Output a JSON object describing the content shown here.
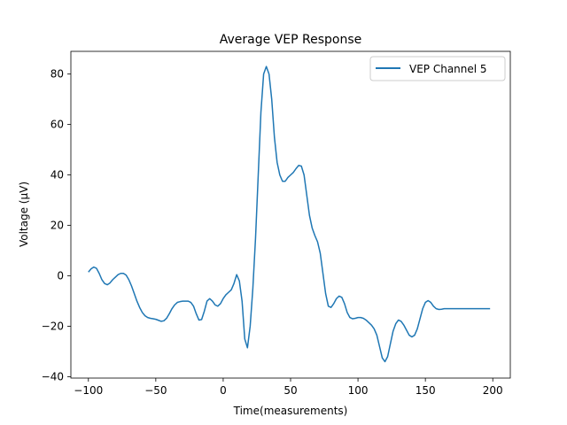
{
  "chart_data": {
    "type": "line",
    "title": "Average VEP Response",
    "xlabel": "Time(measurements)",
    "ylabel": "Voltage (µV)",
    "xlim": [
      -113,
      213
    ],
    "ylim": [
      -40.5,
      89
    ],
    "xticks": [
      -100,
      -50,
      0,
      50,
      100,
      150,
      200
    ],
    "yticks": [
      -40,
      -20,
      0,
      20,
      40,
      60,
      80
    ],
    "grid": false,
    "legend": "top-right",
    "series": [
      {
        "name": "VEP Channel 5",
        "color": "#1f77b4",
        "x": [
          -100,
          -98,
          -96,
          -94,
          -92,
          -90,
          -88,
          -86,
          -84,
          -82,
          -80,
          -78,
          -76,
          -74,
          -72,
          -70,
          -68,
          -66,
          -64,
          -62,
          -60,
          -58,
          -56,
          -54,
          -52,
          -50,
          -48,
          -46,
          -44,
          -42,
          -40,
          -38,
          -36,
          -34,
          -32,
          -30,
          -28,
          -26,
          -24,
          -22,
          -20,
          -18,
          -16,
          -14,
          -12,
          -10,
          -8,
          -6,
          -4,
          -2,
          0,
          2,
          4,
          6,
          8,
          10,
          12,
          14,
          16,
          18,
          20,
          22,
          24,
          26,
          28,
          30,
          32,
          34,
          36,
          38,
          40,
          42,
          44,
          46,
          48,
          50,
          52,
          54,
          56,
          58,
          60,
          62,
          64,
          66,
          68,
          70,
          72,
          74,
          76,
          78,
          80,
          82,
          84,
          86,
          88,
          90,
          92,
          94,
          96,
          98,
          100,
          102,
          104,
          106,
          108,
          110,
          112,
          114,
          116,
          118,
          120,
          122,
          124,
          126,
          128,
          130,
          132,
          134,
          136,
          138,
          140,
          142,
          144,
          146,
          148,
          150,
          152,
          154,
          156,
          158,
          160,
          162,
          164,
          166,
          168,
          170,
          172,
          174,
          176,
          178,
          180,
          182,
          184,
          186,
          188,
          190,
          192,
          194,
          196,
          198
        ],
        "values": [
          1.5,
          2.8,
          3.5,
          3.0,
          1.0,
          -1.5,
          -3.0,
          -3.5,
          -2.8,
          -1.5,
          -0.5,
          0.5,
          1.0,
          1.0,
          0.3,
          -1.5,
          -4.0,
          -7.0,
          -10.0,
          -12.5,
          -14.5,
          -15.8,
          -16.5,
          -16.8,
          -17.0,
          -17.2,
          -17.6,
          -18.0,
          -17.8,
          -16.8,
          -15.0,
          -13.0,
          -11.5,
          -10.5,
          -10.2,
          -10.0,
          -10.0,
          -10.0,
          -10.5,
          -12.0,
          -15.0,
          -17.5,
          -17.3,
          -14.0,
          -10.0,
          -9.0,
          -10.0,
          -11.5,
          -12.0,
          -11.0,
          -9.0,
          -7.5,
          -6.5,
          -5.5,
          -3.0,
          0.5,
          -2.0,
          -10.0,
          -25.0,
          -28.5,
          -20.0,
          -5.0,
          15.0,
          40.0,
          65.0,
          80.0,
          83.0,
          80.0,
          70.0,
          55.0,
          45.0,
          40.0,
          37.5,
          37.5,
          39.0,
          40.0,
          41.0,
          42.5,
          43.8,
          43.5,
          40.0,
          32.0,
          24.0,
          19.0,
          16.0,
          13.5,
          9.0,
          1.0,
          -7.0,
          -12.0,
          -12.5,
          -11.0,
          -9.0,
          -8.0,
          -8.5,
          -11.0,
          -14.5,
          -16.5,
          -17.0,
          -16.8,
          -16.5,
          -16.5,
          -16.8,
          -17.5,
          -18.5,
          -19.5,
          -21.0,
          -23.5,
          -28.0,
          -32.5,
          -34.0,
          -32.0,
          -27.0,
          -22.0,
          -19.0,
          -17.5,
          -18.0,
          -19.5,
          -21.5,
          -23.5,
          -24.2,
          -23.5,
          -21.0,
          -17.0,
          -13.0,
          -10.5,
          -9.8,
          -10.5,
          -12.0,
          -13.0,
          -13.3,
          -13.2,
          -13.0,
          -13.0,
          -13.0,
          -13.0,
          -13.0,
          -13.0,
          -13.0,
          -13.0,
          -13.0,
          -13.0,
          -13.0,
          -13.0,
          -13.0,
          -13.0,
          -13.0,
          -13.0,
          -13.0,
          -13.0
        ]
      }
    ]
  }
}
